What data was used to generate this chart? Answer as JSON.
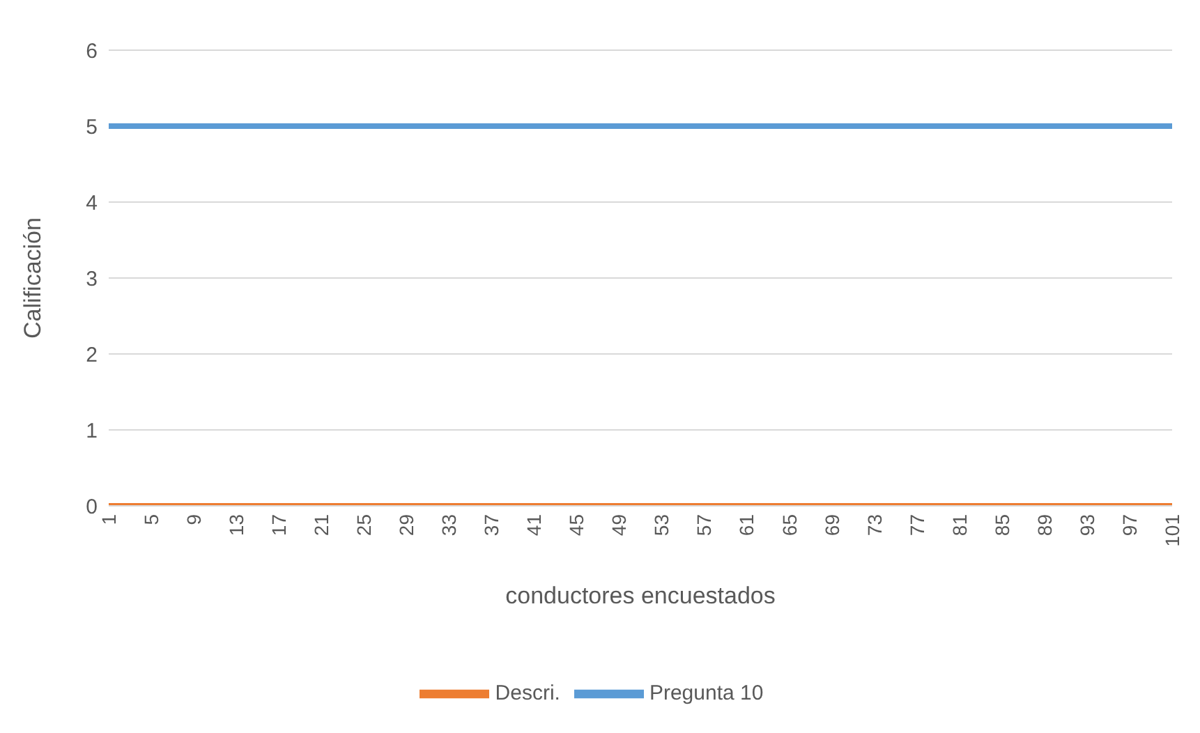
{
  "chart_data": {
    "type": "line",
    "ylabel": "Calificación",
    "xlabel": "conductores encuestados",
    "categories": [
      "1",
      null,
      null,
      null,
      "5",
      null,
      null,
      null,
      "9",
      null,
      null,
      null,
      "13",
      null,
      null,
      null,
      "17",
      null,
      null,
      null,
      "21",
      null,
      null,
      null,
      "25",
      null,
      null,
      null,
      "29",
      null,
      null,
      null,
      "33",
      null,
      null,
      null,
      "37",
      null,
      null,
      null,
      "41",
      null,
      null,
      null,
      "45",
      null,
      null,
      null,
      "49",
      null,
      null,
      null,
      "53",
      null,
      null,
      null,
      "57",
      null,
      null,
      null,
      "61",
      null,
      null,
      null,
      "65",
      null,
      null,
      null,
      "69",
      null,
      null,
      null,
      "73",
      null,
      null,
      null,
      "77",
      null,
      null,
      null,
      "81",
      null,
      null,
      null,
      "85",
      null,
      null,
      null,
      "89",
      null,
      null,
      null,
      "93",
      null,
      null,
      null,
      "97",
      null,
      null,
      null,
      "101"
    ],
    "series": [
      {
        "name": "Pregunta 10",
        "color": "#5b9bd5",
        "values": [
          5,
          5,
          5,
          5,
          5,
          5,
          5,
          5,
          5,
          5,
          5,
          5,
          5,
          5,
          5,
          5,
          5,
          5,
          5,
          5,
          5,
          5,
          5,
          5,
          5,
          5,
          5,
          5,
          5,
          5,
          5,
          5,
          5,
          5,
          5,
          5,
          5,
          5,
          5,
          5,
          5,
          5,
          5,
          5,
          5,
          5,
          5,
          5,
          5,
          5,
          5,
          5,
          5,
          5,
          5,
          5,
          5,
          5,
          5,
          5,
          5,
          5,
          5,
          5,
          5,
          5,
          5,
          5,
          5,
          5,
          5,
          5,
          5,
          5,
          5,
          5,
          5,
          5,
          5,
          5,
          5,
          5,
          5,
          5,
          5,
          5,
          5,
          5,
          5,
          5,
          5,
          5,
          5,
          5,
          5,
          5,
          5,
          5,
          5,
          5,
          5
        ]
      },
      {
        "name": "Descri.",
        "color": "#ed7d31",
        "values": [
          0,
          0,
          0,
          0,
          0,
          0,
          0,
          0,
          0,
          0,
          0,
          0,
          0,
          0,
          0,
          0,
          0,
          0,
          0,
          0,
          0,
          0,
          0,
          0,
          0,
          0,
          0,
          0,
          0,
          0,
          0,
          0,
          0,
          0,
          0,
          0,
          0,
          0,
          0,
          0,
          0,
          0,
          0,
          0,
          0,
          0,
          0,
          0,
          0,
          0,
          0,
          0,
          0,
          0,
          0,
          0,
          0,
          0,
          0,
          0,
          0,
          0,
          0,
          0,
          0,
          0,
          0,
          0,
          0,
          0,
          0,
          0,
          0,
          0,
          0,
          0,
          0,
          0,
          0,
          0,
          0,
          0,
          0,
          0,
          0,
          0,
          0,
          0,
          0,
          0,
          0,
          0,
          0,
          0,
          0,
          0,
          0,
          0,
          0,
          0,
          0
        ]
      }
    ],
    "ylim": [
      0,
      6
    ],
    "yticks": [
      0,
      1,
      2,
      3,
      4,
      5,
      6
    ],
    "grid": "y",
    "legend": "bottom",
    "marker": "none",
    "line_style": "solid"
  }
}
